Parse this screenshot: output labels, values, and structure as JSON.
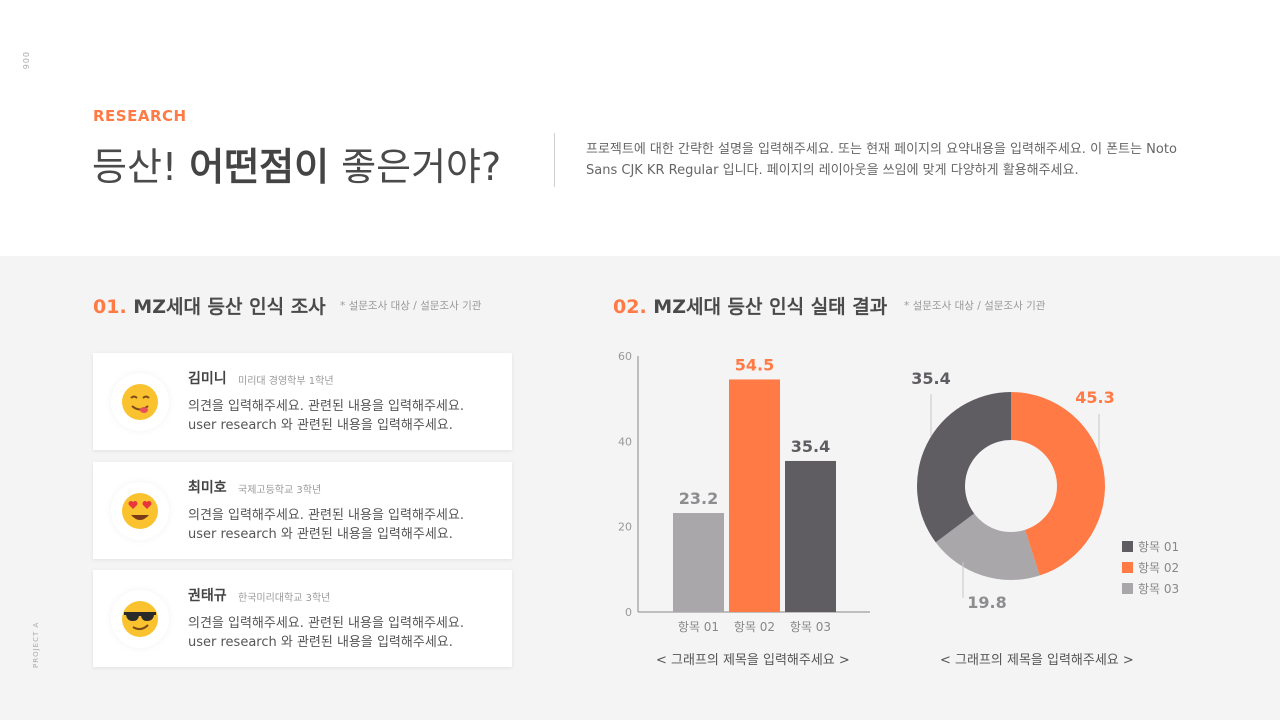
{
  "page": {
    "number": "006",
    "project": "PROJECT A"
  },
  "header": {
    "eyebrow": "RESEARCH",
    "title_part1": "등산! ",
    "title_bold": "어떤점이",
    "title_part2": " 좋은거야?",
    "desc_line1": "프로젝트에 대한 간략한 설명을 입력해주세요. 또는 현재 페이지의 요약내용을 입력해주세요. 이 폰트는 Noto",
    "desc_line2": "Sans CJK KR Regular 입니다. 페이지의 레이아웃을 쓰임에 맞게 다양하게 활용해주세요."
  },
  "section1": {
    "num": "01.",
    "title": " MZ세대 등산 인식 조사",
    "note": "* 설문조사 대상 / 설문조사 기관",
    "cards": [
      {
        "name": "김미니",
        "school": "미리대 경영학부 1학년",
        "line1": "의견을 입력해주세요. 관련된 내용을 입력해주세요.",
        "line2": "user research 와 관련된 내용을 입력해주세요.",
        "icon": "yum-face-icon"
      },
      {
        "name": "최미호",
        "school": "국제고등학교 3학년",
        "line1": "의견을 입력해주세요. 관련된 내용을 입력해주세요.",
        "line2": "user research 와 관련된 내용을 입력해주세요.",
        "icon": "heart-eyes-face-icon"
      },
      {
        "name": "권태규",
        "school": "한국미리대학교 3학년",
        "line1": "의견을 입력해주세요. 관련된 내용을 입력해주세요.",
        "line2": "user research 와 관련된 내용을 입력해주세요.",
        "icon": "sunglasses-face-icon"
      }
    ]
  },
  "section2": {
    "num": "02.",
    "title": " MZ세대 등산 인식 실태 결과",
    "note": "* 설문조사 대상 / 설문조사 기관"
  },
  "colors": {
    "accent": "#ff7a45",
    "dark": "#5f5d61",
    "light": "#a9a7aa"
  },
  "chart_data": [
    {
      "type": "bar",
      "categories": [
        "항목 01",
        "항목 02",
        "항목 03"
      ],
      "values": [
        23.2,
        54.5,
        35.4
      ],
      "colors": [
        "#a9a7aa",
        "#ff7a45",
        "#5f5d61"
      ],
      "ylim": [
        0,
        60
      ],
      "yticks": [
        0,
        20,
        40,
        60
      ],
      "title": "< 그래프의 제목을 입력해주세요 >"
    },
    {
      "type": "pie",
      "style": "donut",
      "categories": [
        "항목 01",
        "항목 02",
        "항목 03"
      ],
      "values": [
        35.4,
        45.3,
        19.8
      ],
      "colors": [
        "#5f5d61",
        "#ff7a45",
        "#a9a7aa"
      ],
      "legend_position": "bottom-right",
      "title": "< 그래프의 제목을 입력해주세요 >"
    }
  ]
}
